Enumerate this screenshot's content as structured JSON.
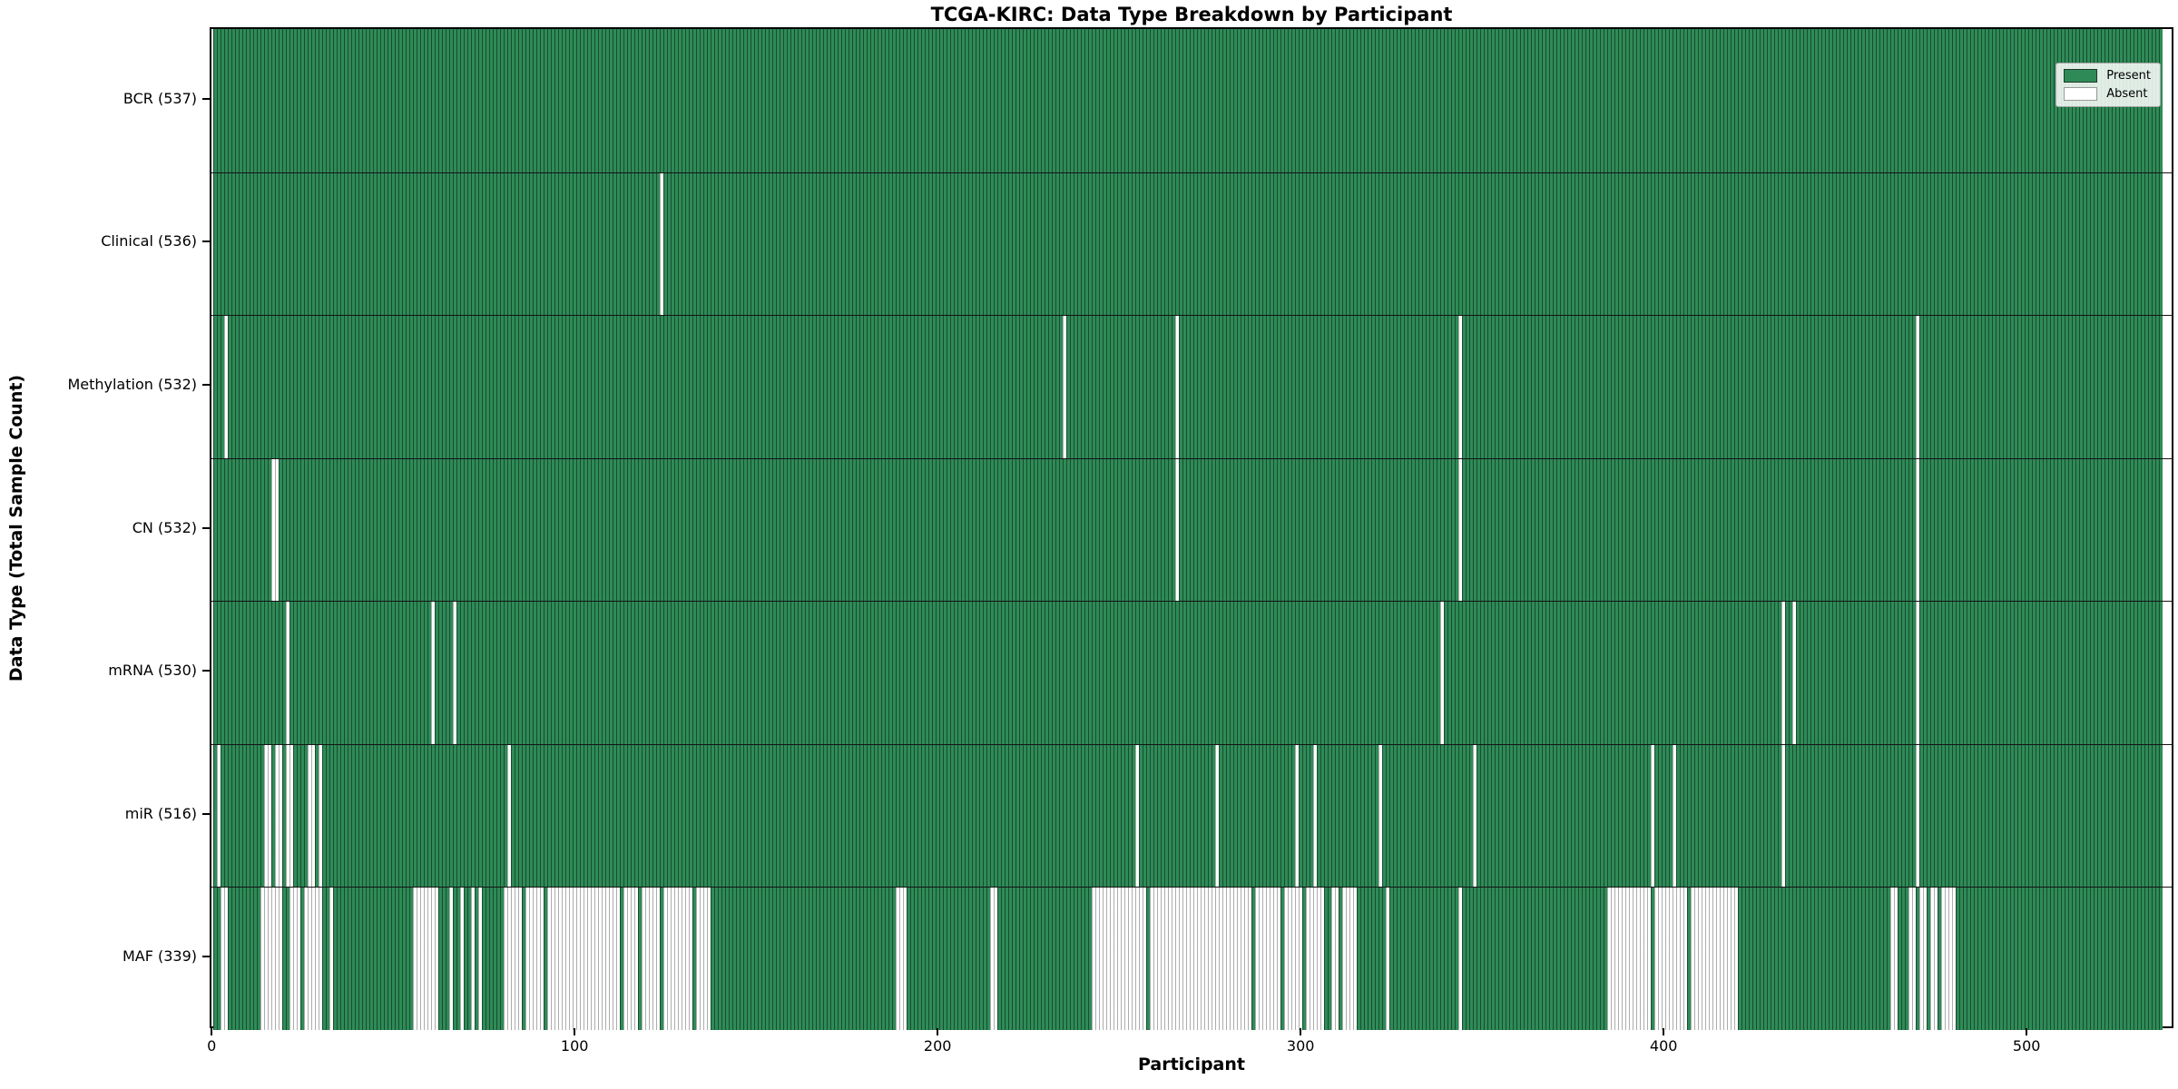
{
  "title": "TCGA-KIRC: Data Type Breakdown by Participant",
  "xlabel": "Participant",
  "ylabel": "Data Type (Total Sample Count)",
  "legend": {
    "present_label": "Present",
    "absent_label": "Absent"
  },
  "colors": {
    "present": "#2e8b57",
    "absent": "#ffffff",
    "bar_edge_on_green": "rgba(10,25,18,0.55)",
    "bar_edge_on_white": "rgba(105,105,105,0.55)",
    "frame": "#000000",
    "row_divider": "#141414",
    "legend_border": "#a6a6a6"
  },
  "chart_data": {
    "type": "heatmap",
    "title": "TCGA-KIRC: Data Type Breakdown by Participant",
    "xlabel": "Participant",
    "ylabel": "Data Type (Total Sample Count)",
    "n_participants": 537,
    "x_range": [
      0,
      537
    ],
    "xticks": [
      0,
      100,
      200,
      300,
      400,
      500
    ],
    "grid": false,
    "legend_position": "upper right",
    "cell_states": {
      "present": 1,
      "absent": 0
    },
    "rows": [
      {
        "label": "BCR",
        "total": 537,
        "tick_label": "BCR (537)",
        "absent_ranges": []
      },
      {
        "label": "Clinical",
        "total": 536,
        "tick_label": "Clinical (536)",
        "absent_ranges": [
          [
            123,
            123
          ]
        ]
      },
      {
        "label": "Methylation",
        "total": 532,
        "tick_label": "Methylation (532)",
        "absent_ranges": [
          [
            3,
            3
          ],
          [
            234,
            234
          ],
          [
            265,
            265
          ],
          [
            343,
            343
          ],
          [
            469,
            469
          ]
        ]
      },
      {
        "label": "CN",
        "total": 532,
        "tick_label": "CN (532)",
        "absent_ranges": [
          [
            16,
            17
          ],
          [
            265,
            265
          ],
          [
            343,
            343
          ],
          [
            469,
            469
          ]
        ]
      },
      {
        "label": "mRNA",
        "total": 530,
        "tick_label": "mRNA (530)",
        "absent_ranges": [
          [
            20,
            20
          ],
          [
            60,
            60
          ],
          [
            66,
            66
          ],
          [
            338,
            338
          ],
          [
            432,
            432
          ],
          [
            435,
            435
          ],
          [
            469,
            469
          ]
        ]
      },
      {
        "label": "miR",
        "total": 516,
        "tick_label": "miR (516)",
        "absent_ranges": [
          [
            1,
            1
          ],
          [
            14,
            15
          ],
          [
            17,
            18
          ],
          [
            20,
            21
          ],
          [
            26,
            27
          ],
          [
            29,
            29
          ],
          [
            81,
            81
          ],
          [
            254,
            254
          ],
          [
            276,
            276
          ],
          [
            298,
            298
          ],
          [
            303,
            303
          ],
          [
            321,
            321
          ],
          [
            347,
            347
          ],
          [
            396,
            396
          ],
          [
            402,
            402
          ],
          [
            432,
            432
          ],
          [
            469,
            469
          ]
        ]
      },
      {
        "label": "MAF",
        "total": 339,
        "tick_label": "MAF (339)",
        "absent_ranges": [
          [
            2,
            3
          ],
          [
            13,
            18
          ],
          [
            21,
            23
          ],
          [
            25,
            29
          ],
          [
            32,
            32
          ],
          [
            55,
            61
          ],
          [
            65,
            65
          ],
          [
            68,
            68
          ],
          [
            71,
            71
          ],
          [
            73,
            73
          ],
          [
            80,
            84
          ],
          [
            86,
            90
          ],
          [
            92,
            111
          ],
          [
            113,
            116
          ],
          [
            118,
            122
          ],
          [
            124,
            131
          ],
          [
            133,
            136
          ],
          [
            188,
            190
          ],
          [
            214,
            215
          ],
          [
            242,
            256
          ],
          [
            258,
            285
          ],
          [
            287,
            293
          ],
          [
            295,
            299
          ],
          [
            301,
            305
          ],
          [
            308,
            309
          ],
          [
            311,
            314
          ],
          [
            323,
            323
          ],
          [
            343,
            343
          ],
          [
            384,
            395
          ],
          [
            397,
            405
          ],
          [
            407,
            419
          ],
          [
            462,
            463
          ],
          [
            467,
            468
          ],
          [
            470,
            471
          ],
          [
            473,
            474
          ],
          [
            476,
            479
          ]
        ]
      }
    ]
  }
}
